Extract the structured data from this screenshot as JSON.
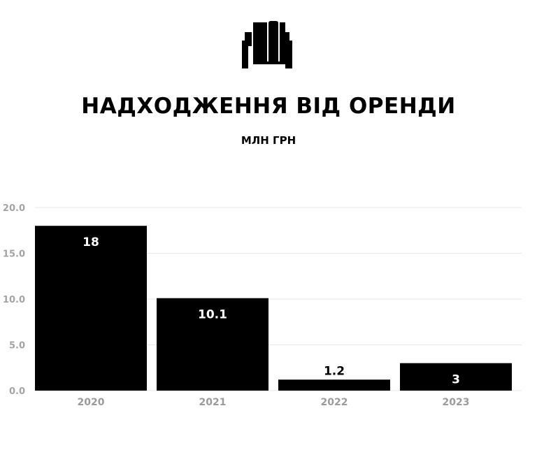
{
  "title": "НАДХОДЖЕННЯ ВІД ОРЕНДИ",
  "subtitle": "МЛН ГРН",
  "logo_icon": "building-columns-logo-icon",
  "colors": {
    "bar": "#000000",
    "label_inside": "#ffffff",
    "label_outside": "#000000",
    "grid": "#e9e9e9",
    "tick": "#a3a3a3"
  },
  "chart_data": {
    "type": "bar",
    "title": "НАДХОДЖЕННЯ ВІД ОРЕНДИ",
    "subtitle": "МЛН ГРН",
    "categories": [
      "2020",
      "2021",
      "2022",
      "2023"
    ],
    "values": [
      18,
      10.1,
      1.2,
      3
    ],
    "data_labels": [
      "18",
      "10.1",
      "1.2",
      "3"
    ],
    "y_ticks": [
      "0.0",
      "5.0",
      "10.0",
      "15.0",
      "20.0"
    ],
    "ylim": [
      0,
      20
    ],
    "grid": true,
    "legend": "none"
  }
}
